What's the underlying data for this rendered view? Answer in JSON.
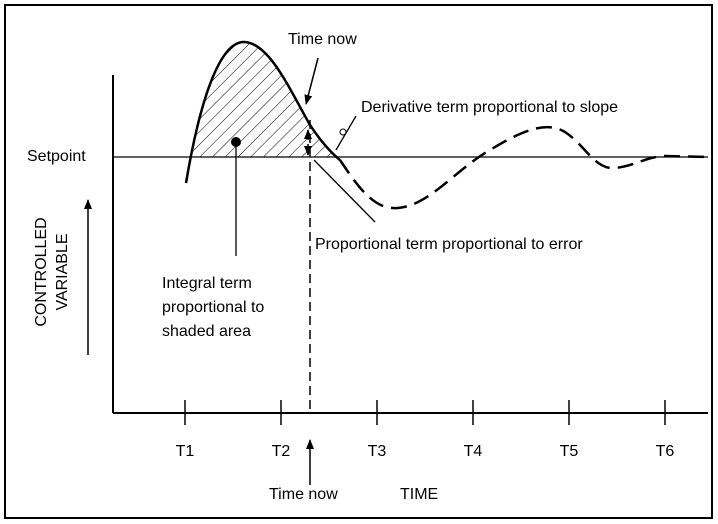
{
  "setpoint_label": "Setpoint",
  "y_axis_label": [
    "CONTROLLED",
    "VARIABLE"
  ],
  "x_axis_label": "TIME",
  "time_ticks": [
    "T1",
    "T2",
    "T3",
    "T4",
    "T5",
    "T6"
  ],
  "annotations": {
    "time_now_top": "Time now",
    "time_now_bottom": "Time now",
    "derivative": "Derivative term proportional to slope",
    "proportional": "Proportional term proportional to error",
    "integral": [
      "Integral term",
      "proportional to",
      "shaded area"
    ]
  }
}
